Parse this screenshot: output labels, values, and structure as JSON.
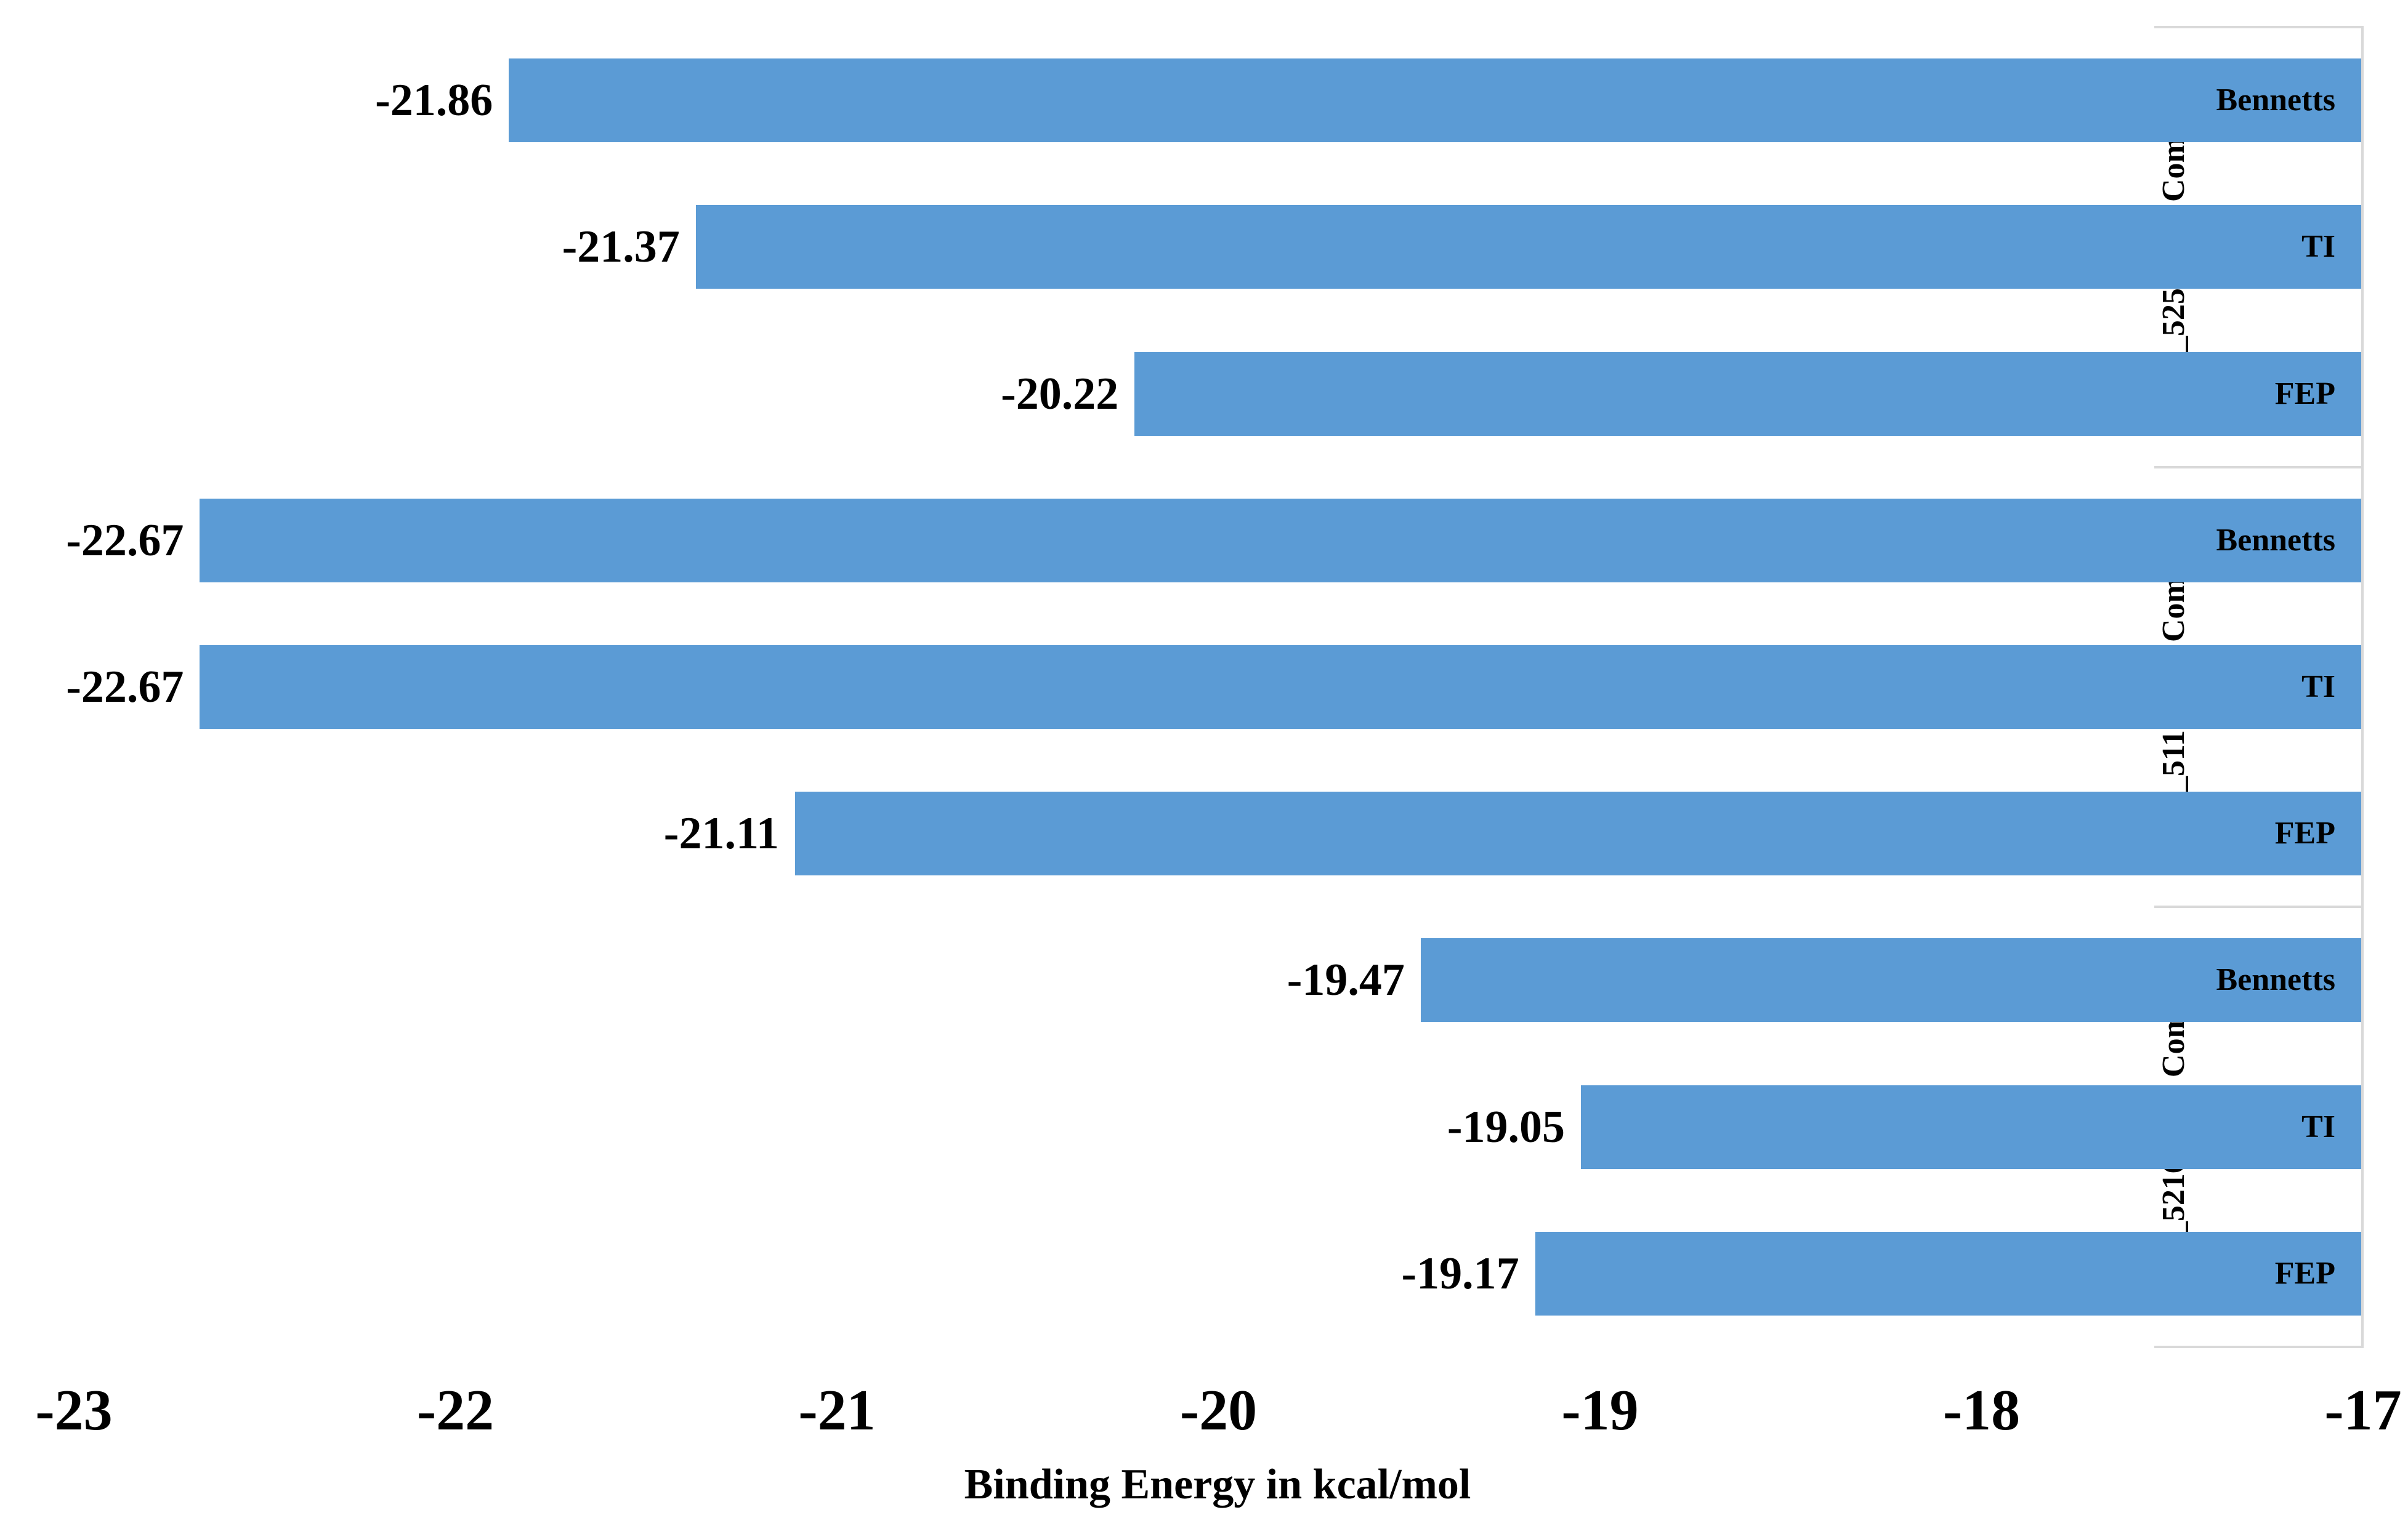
{
  "chart_data": {
    "type": "bar",
    "orientation": "horizontal",
    "xlabel": "Binding Energy in kcal/mol",
    "x_axis": {
      "min": -23,
      "max": -17,
      "ticks": [
        "-23",
        "-22",
        "-21",
        "-20",
        "-19",
        "-18",
        "-17"
      ]
    },
    "legend_position": "none",
    "grid": false,
    "bars_anchor": "right",
    "data_label_decimals": 2,
    "groups": [
      {
        "label": "LAS_52506311 Complex",
        "series": [
          {
            "method": "Bennetts",
            "value": -21.86,
            "label": "-21.86"
          },
          {
            "method": "TI",
            "value": -21.37,
            "label": "-21.37"
          },
          {
            "method": "FEP",
            "value": -20.22,
            "label": "-20.22"
          }
        ]
      },
      {
        "label": "LAS_51177972 Complex",
        "series": [
          {
            "method": "Bennetts",
            "value": -22.67,
            "label": "-22.67"
          },
          {
            "method": "TI",
            "value": -22.67,
            "label": "-22.67"
          },
          {
            "method": "FEP",
            "value": -21.11,
            "label": "-21.11"
          }
        ]
      },
      {
        "label": "LAS_52160953  Complex",
        "series": [
          {
            "method": "Bennetts",
            "value": -19.47,
            "label": "-19.47"
          },
          {
            "method": "TI",
            "value": -19.05,
            "label": "-19.05"
          },
          {
            "method": "FEP",
            "value": -19.17,
            "label": "-19.17"
          }
        ]
      }
    ],
    "colors": {
      "bar": "#5B9BD5",
      "separator_line": "#D9D9D9",
      "text": "#000000",
      "background": "#FFFFFF"
    }
  }
}
